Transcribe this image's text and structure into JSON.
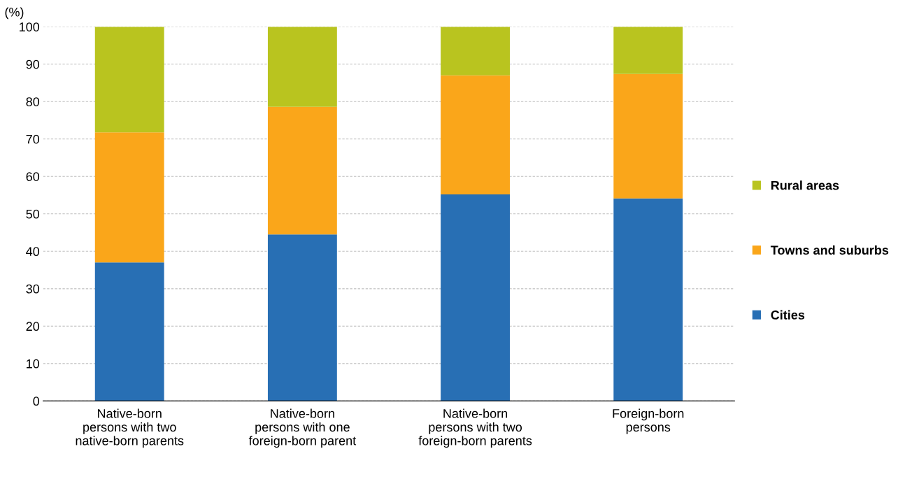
{
  "chart_data": {
    "type": "bar",
    "stacked": true,
    "ylabel": "(%)",
    "categories": [
      "Native-born\npersons with two\nnative-born parents",
      "Native-born\npersons with one\nforeign-born parent",
      "Native-born\npersons with two\nforeign-born parents",
      "Foreign-born\npersons"
    ],
    "series": [
      {
        "name": "Cities",
        "color": "#286fb4",
        "values": [
          37.0,
          44.5,
          55.2,
          54.1
        ]
      },
      {
        "name": "Towns and suburbs",
        "color": "#faa61a",
        "values": [
          34.8,
          34.1,
          31.8,
          33.3
        ]
      },
      {
        "name": "Rural areas",
        "color": "#b9c41f",
        "values": [
          28.2,
          21.4,
          13.0,
          12.6
        ]
      }
    ],
    "ylim": [
      0,
      100
    ],
    "yticks": [
      0,
      10,
      20,
      30,
      40,
      50,
      60,
      70,
      80,
      90,
      100
    ],
    "grid": "y",
    "legend": "right"
  }
}
